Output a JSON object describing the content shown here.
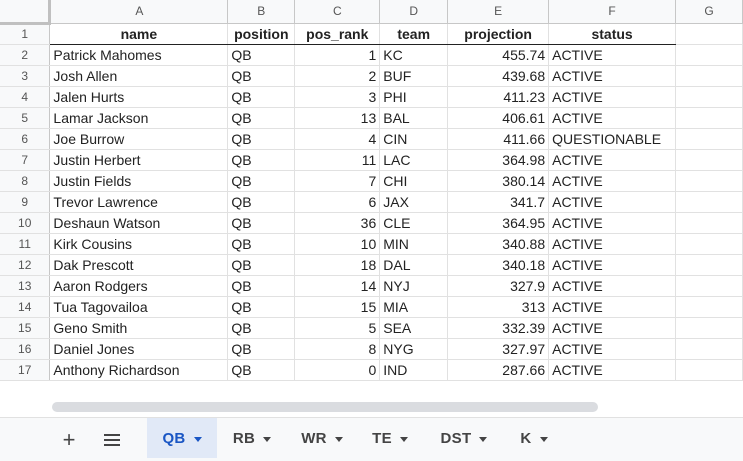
{
  "columns": [
    "A",
    "B",
    "C",
    "D",
    "E",
    "F",
    "G"
  ],
  "header_row": {
    "num": "1",
    "cells": [
      "name",
      "position",
      "pos_rank",
      "team",
      "projection",
      "status",
      ""
    ]
  },
  "rows": [
    {
      "num": "2",
      "name": "Patrick Mahomes",
      "position": "QB",
      "pos_rank": "1",
      "team": "KC",
      "projection": "455.74",
      "status": "ACTIVE"
    },
    {
      "num": "3",
      "name": "Josh Allen",
      "position": "QB",
      "pos_rank": "2",
      "team": "BUF",
      "projection": "439.68",
      "status": "ACTIVE"
    },
    {
      "num": "4",
      "name": "Jalen Hurts",
      "position": "QB",
      "pos_rank": "3",
      "team": "PHI",
      "projection": "411.23",
      "status": "ACTIVE"
    },
    {
      "num": "5",
      "name": "Lamar Jackson",
      "position": "QB",
      "pos_rank": "13",
      "team": "BAL",
      "projection": "406.61",
      "status": "ACTIVE"
    },
    {
      "num": "6",
      "name": "Joe Burrow",
      "position": "QB",
      "pos_rank": "4",
      "team": "CIN",
      "projection": "411.66",
      "status": "QUESTIONABLE"
    },
    {
      "num": "7",
      "name": "Justin Herbert",
      "position": "QB",
      "pos_rank": "11",
      "team": "LAC",
      "projection": "364.98",
      "status": "ACTIVE"
    },
    {
      "num": "8",
      "name": "Justin Fields",
      "position": "QB",
      "pos_rank": "7",
      "team": "CHI",
      "projection": "380.14",
      "status": "ACTIVE"
    },
    {
      "num": "9",
      "name": "Trevor Lawrence",
      "position": "QB",
      "pos_rank": "6",
      "team": "JAX",
      "projection": "341.7",
      "status": "ACTIVE"
    },
    {
      "num": "10",
      "name": "Deshaun Watson",
      "position": "QB",
      "pos_rank": "36",
      "team": "CLE",
      "projection": "364.95",
      "status": "ACTIVE"
    },
    {
      "num": "11",
      "name": "Kirk Cousins",
      "position": "QB",
      "pos_rank": "10",
      "team": "MIN",
      "projection": "340.88",
      "status": "ACTIVE"
    },
    {
      "num": "12",
      "name": "Dak Prescott",
      "position": "QB",
      "pos_rank": "18",
      "team": "DAL",
      "projection": "340.18",
      "status": "ACTIVE"
    },
    {
      "num": "13",
      "name": "Aaron Rodgers",
      "position": "QB",
      "pos_rank": "14",
      "team": "NYJ",
      "projection": "327.9",
      "status": "ACTIVE"
    },
    {
      "num": "14",
      "name": "Tua Tagovailoa",
      "position": "QB",
      "pos_rank": "15",
      "team": "MIA",
      "projection": "313",
      "status": "ACTIVE"
    },
    {
      "num": "15",
      "name": "Geno Smith",
      "position": "QB",
      "pos_rank": "5",
      "team": "SEA",
      "projection": "332.39",
      "status": "ACTIVE"
    },
    {
      "num": "16",
      "name": "Daniel Jones",
      "position": "QB",
      "pos_rank": "8",
      "team": "NYG",
      "projection": "327.97",
      "status": "ACTIVE"
    },
    {
      "num": "17",
      "name": "Anthony Richardson",
      "position": "QB",
      "pos_rank": "0",
      "team": "IND",
      "projection": "287.66",
      "status": "ACTIVE"
    }
  ],
  "toolbar": {
    "add_icon": "plus-icon",
    "menu_icon": "menu-icon"
  },
  "sheet_tabs": [
    {
      "label": "QB",
      "active": true
    },
    {
      "label": "RB",
      "active": false
    },
    {
      "label": "WR",
      "active": false
    },
    {
      "label": "TE",
      "active": false
    },
    {
      "label": "DST",
      "active": false
    },
    {
      "label": "K",
      "active": false
    }
  ],
  "colors": {
    "active_tab_bg": "#e1e9f7",
    "active_tab_text": "#1a56c4"
  }
}
